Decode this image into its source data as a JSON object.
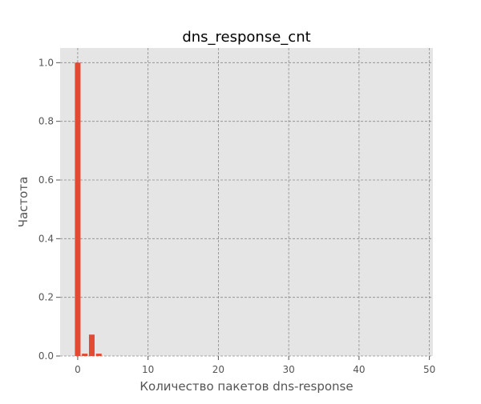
{
  "chart_data": {
    "type": "bar",
    "title": "dns_response_cnt",
    "xlabel": "Количество пакетов dns-response",
    "ylabel": "Частота",
    "x": [
      0,
      1,
      2,
      3
    ],
    "values": [
      1.0,
      0.008,
      0.073,
      0.008
    ],
    "bar_width": 0.8,
    "xlim": [
      -2.5,
      50.5
    ],
    "ylim": [
      0,
      1.05
    ],
    "xticks": [
      0,
      10,
      20,
      30,
      40,
      50
    ],
    "yticks": [
      0.0,
      0.2,
      0.4,
      0.6,
      0.8,
      1.0
    ],
    "xtick_labels": [
      "0",
      "10",
      "20",
      "30",
      "40",
      "50"
    ],
    "ytick_labels": [
      "0.0",
      "0.2",
      "0.4",
      "0.6",
      "0.8",
      "1.0"
    ],
    "grid": true,
    "bar_color": "#E24A33",
    "background_color": "#E5E5E5"
  }
}
